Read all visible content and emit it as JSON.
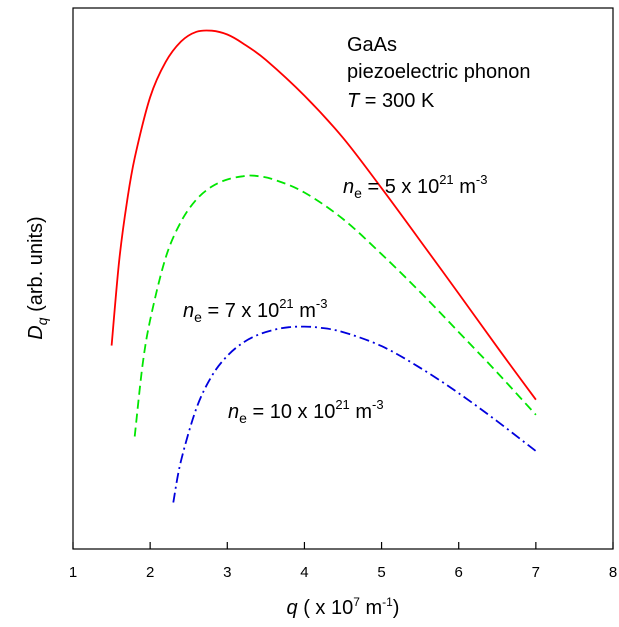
{
  "chart_data": {
    "type": "line",
    "title": "",
    "xlabel": {
      "var": "q",
      "unit_prefix": " ( x 10",
      "unit_exp": "7",
      "unit_mid": " m",
      "unit_exp2": "-1",
      "unit_suffix": ")"
    },
    "ylabel": {
      "var": "D",
      "sub": "q",
      "rest": " (arb. units)"
    },
    "xlim": [
      1,
      8
    ],
    "xticks": [
      "1",
      "2",
      "3",
      "4",
      "5",
      "6",
      "7",
      "8"
    ],
    "ylim": [
      0,
      1
    ],
    "y_ticks_labeled": false,
    "grid": false,
    "annotation": {
      "line1": "GaAs",
      "line2": "piezoelectric phonon",
      "t_var": "T",
      "t_value": " = 300 K"
    },
    "series": [
      {
        "label_var": "n",
        "label_sub": "e",
        "label_mid": " = 5 x 10",
        "label_exp": "21",
        "label_unit": " m",
        "label_exp2": "-3",
        "color": "#ff0000",
        "style": "solid",
        "x": [
          1.5,
          1.6,
          1.7,
          1.8,
          2.0,
          2.2,
          2.4,
          2.6,
          2.8,
          3.0,
          3.2,
          3.5,
          4.0,
          4.5,
          5.0,
          5.5,
          6.0,
          6.5,
          7.0
        ],
        "y": [
          0.376,
          0.535,
          0.642,
          0.723,
          0.835,
          0.9,
          0.938,
          0.956,
          0.958,
          0.951,
          0.935,
          0.904,
          0.838,
          0.76,
          0.667,
          0.57,
          0.472,
          0.373,
          0.276
        ]
      },
      {
        "label_var": "n",
        "label_sub": "e",
        "label_mid": " = 7 x 10",
        "label_exp": "21",
        "label_unit": " m",
        "label_exp2": "-3",
        "color": "#00e600",
        "style": "dashed",
        "x": [
          1.8,
          1.9,
          2.0,
          2.2,
          2.4,
          2.6,
          2.8,
          3.0,
          3.2,
          3.35,
          3.6,
          4.0,
          4.5,
          5.0,
          5.5,
          6.0,
          6.5,
          7.0
        ],
        "y": [
          0.208,
          0.338,
          0.423,
          0.538,
          0.605,
          0.646,
          0.67,
          0.683,
          0.689,
          0.69,
          0.683,
          0.659,
          0.61,
          0.545,
          0.475,
          0.401,
          0.326,
          0.248
        ]
      },
      {
        "label_var": "n",
        "label_sub": "e",
        "label_mid": " = 10 x 10",
        "label_exp": "21",
        "label_unit": " m",
        "label_exp2": "-3",
        "color": "#0000dd",
        "style": "dashdot",
        "x": [
          2.3,
          2.4,
          2.6,
          2.8,
          3.0,
          3.2,
          3.4,
          3.6,
          3.8,
          4.0,
          4.2,
          4.5,
          5.0,
          5.5,
          6.0,
          6.5,
          7.0
        ],
        "y": [
          0.086,
          0.163,
          0.26,
          0.32,
          0.357,
          0.381,
          0.396,
          0.405,
          0.41,
          0.411,
          0.409,
          0.401,
          0.375,
          0.335,
          0.288,
          0.236,
          0.181
        ]
      }
    ]
  }
}
